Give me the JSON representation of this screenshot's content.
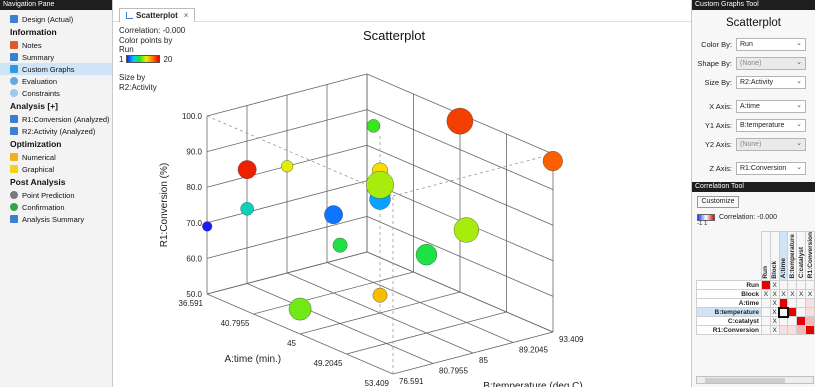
{
  "nav": {
    "header": "Navigation Pane",
    "design": "Design (Actual)",
    "sections": [
      {
        "title": "Information",
        "items": [
          "Notes",
          "Summary",
          "Custom Graphs",
          "Evaluation",
          "Constraints"
        ]
      },
      {
        "title": "Analysis [+]",
        "items": [
          "R1:Conversion (Analyzed)",
          "R2:Activity (Analyzed)"
        ]
      },
      {
        "title": "Optimization",
        "items": [
          "Numerical",
          "Graphical"
        ]
      },
      {
        "title": "Post Analysis",
        "items": [
          "Point Prediction",
          "Confirmation",
          "Analysis Summary"
        ]
      }
    ],
    "selected_item": "Custom Graphs"
  },
  "tab": {
    "label": "Scatterplot",
    "close": "×"
  },
  "info": {
    "correlation": "Correlation: -0.000",
    "color_by_label": "Color points by",
    "color_by_value": "Run",
    "scale_min": "1",
    "scale_max": "20",
    "size_by_label": "Size by",
    "size_by_value": "R2:Activity"
  },
  "chart": {
    "title": "Scatterplot",
    "xlabel": "A:time (min.)",
    "ylabel": "B:temperature (deg C)",
    "zlabel": "R1:Conversion (%)",
    "x_ticks": [
      "36.591",
      "40.7955",
      "45",
      "49.2045",
      "53.409"
    ],
    "y_ticks": [
      "76.591",
      "80.7955",
      "85",
      "89.2045",
      "93.409"
    ],
    "z_ticks": [
      "50.0",
      "60.0",
      "70.0",
      "80.0",
      "90.0",
      "100.0"
    ]
  },
  "chart_data": {
    "type": "scatter",
    "title": "Scatterplot",
    "xlabel": "A:time (min.)",
    "ylabel": "B:temperature (deg C)",
    "zlabel": "R1:Conversion (%)",
    "xlim": [
      36.591,
      53.409
    ],
    "ylim": [
      76.591,
      93.409
    ],
    "zlim": [
      50,
      100
    ],
    "color_by": "Run",
    "color_range": [
      1,
      20
    ],
    "size_by": "R2:Activity",
    "points": [
      {
        "x": 53.4,
        "y": 93.4,
        "z": 98.0,
        "run": 17,
        "size": 60
      },
      {
        "x": 45.0,
        "y": 93.4,
        "z": 98.0,
        "run": 18,
        "size": 85
      },
      {
        "x": 40.8,
        "y": 89.2,
        "z": 94.0,
        "run": 9,
        "size": 35
      },
      {
        "x": 45.0,
        "y": 85.0,
        "z": 90.0,
        "run": 13,
        "size": 45
      },
      {
        "x": 36.6,
        "y": 85.0,
        "z": 80.0,
        "run": 12,
        "size": 30
      },
      {
        "x": 36.6,
        "y": 80.8,
        "z": 82.0,
        "run": 19,
        "size": 55
      },
      {
        "x": 45.0,
        "y": 85.0,
        "z": 85.0,
        "run": 16,
        "size": 60
      },
      {
        "x": 45.0,
        "y": 85.0,
        "z": 82.0,
        "run": 4,
        "size": 65
      },
      {
        "x": 45.0,
        "y": 85.0,
        "z": 86.0,
        "run": 11,
        "size": 90
      },
      {
        "x": 49.2,
        "y": 89.2,
        "z": 76.0,
        "run": 11,
        "size": 80
      },
      {
        "x": 49.2,
        "y": 85.0,
        "z": 72.0,
        "run": 8,
        "size": 65
      },
      {
        "x": 40.8,
        "y": 85.0,
        "z": 72.0,
        "run": 3,
        "size": 55
      },
      {
        "x": 45.0,
        "y": 80.8,
        "z": 72.0,
        "run": 8,
        "size": 40
      },
      {
        "x": 36.6,
        "y": 80.8,
        "z": 71.0,
        "run": 6,
        "size": 35
      },
      {
        "x": 36.6,
        "y": 76.6,
        "z": 69.0,
        "run": 1,
        "size": 22
      },
      {
        "x": 45.0,
        "y": 85.0,
        "z": 55.0,
        "run": 14,
        "size": 40
      },
      {
        "x": 45.0,
        "y": 76.6,
        "z": 57.0,
        "run": 10,
        "size": 70
      }
    ]
  },
  "right": {
    "header": "Custom Graphs Tool",
    "title": "Scatterplot",
    "fields": [
      {
        "label": "Color By:",
        "value": "Run",
        "disabled": false
      },
      {
        "label": "Shape By:",
        "value": "(None)",
        "disabled": true
      },
      {
        "label": "Size By:",
        "value": "R2:Activity",
        "disabled": false
      },
      {
        "label": "X Axis:",
        "value": "A:time",
        "disabled": false
      },
      {
        "label": "Y1 Axis:",
        "value": "B:temperature",
        "disabled": false
      },
      {
        "label": "Y2 Axis:",
        "value": "(None)",
        "disabled": true
      },
      {
        "label": "Z Axis:",
        "value": "R1:Conversion",
        "disabled": false
      }
    ],
    "corr_header": "Correlation Tool",
    "customize": "Customize",
    "corr_label": "Correlation: -0.000",
    "scale": "-1   1",
    "matrix_cols": [
      "Run",
      "Block",
      "A:time",
      "B:temperature",
      "C:catalyst",
      "R1:Conversion"
    ],
    "matrix_rows": [
      "Run",
      "Block",
      "A:time",
      "B:temperature",
      "C:catalyst",
      "R1:Conversion"
    ],
    "cell_mark": "X"
  }
}
